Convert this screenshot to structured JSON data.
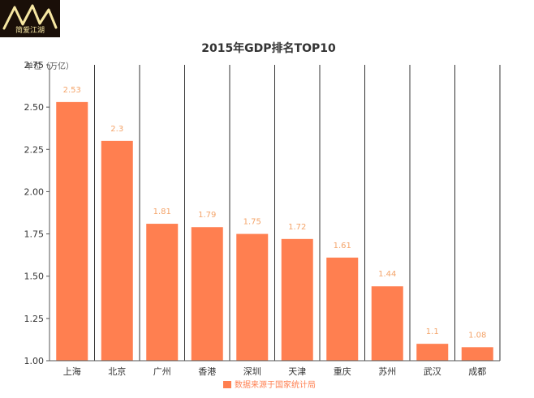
{
  "logo": {
    "text": "简爱江湖"
  },
  "colors": {
    "bar": "#ff7f50",
    "data_label": "#f4a46a",
    "axis": "#555555",
    "grid_vertical": "#333333",
    "text": "#333333",
    "logo_dark": "#1a0f08",
    "logo_gold": "#f7e7a2"
  },
  "chart_data": {
    "type": "bar",
    "title": "2015年GDP排名TOP10",
    "ylabel": "单位（万亿）",
    "xlabel": "",
    "categories": [
      "上海",
      "北京",
      "广州",
      "香港",
      "深圳",
      "天津",
      "重庆",
      "苏州",
      "武汉",
      "成都"
    ],
    "values": [
      2.53,
      2.3,
      1.81,
      1.79,
      1.75,
      1.72,
      1.61,
      1.44,
      1.1,
      1.08
    ],
    "data_labels": [
      "2.53",
      "2.3",
      "1.81",
      "1.79",
      "1.75",
      "1.72",
      "1.61",
      "1.44",
      "1.1",
      "1.08"
    ],
    "ylim": [
      1.0,
      2.75
    ],
    "yticks": [
      1.0,
      1.25,
      1.5,
      1.75,
      2.0,
      2.25,
      2.5,
      2.75
    ],
    "ytick_labels": [
      "1.00",
      "1.25",
      "1.50",
      "1.75",
      "2.00",
      "2.25",
      "2.50",
      "2.75"
    ],
    "legend": {
      "label": "数据来源于国家统计局",
      "position": "bottom-center"
    }
  }
}
